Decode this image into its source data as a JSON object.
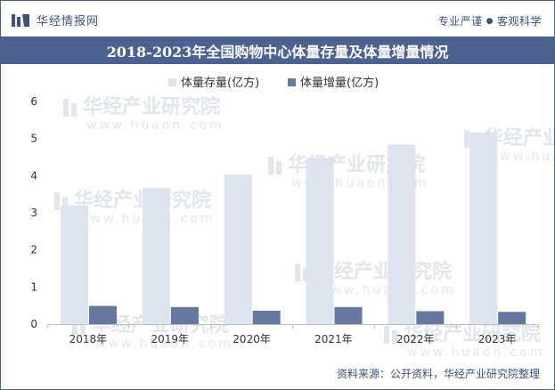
{
  "header": {
    "brand": "华经情报网",
    "brand_icon": "huajing-logo-icon",
    "slogan_left": "专业严谨",
    "slogan_right": "客观科学"
  },
  "watermark": {
    "text": "华经产业研究院",
    "url": "www.huaon.com"
  },
  "chart_data": {
    "type": "bar",
    "title": "2018-2023年全国购物中心体量存量及体量增量情况",
    "categories": [
      "2018年",
      "2019年",
      "2020年",
      "2021年",
      "2022年",
      "2023年"
    ],
    "series": [
      {
        "name": "体量存量(亿方)",
        "values": [
          3.2,
          3.67,
          4.03,
          4.48,
          4.84,
          5.16
        ],
        "color": "#dde3ef"
      },
      {
        "name": "体量增量(亿方)",
        "values": [
          0.49,
          0.46,
          0.36,
          0.46,
          0.35,
          0.33
        ],
        "color": "#66789f"
      }
    ],
    "yticks": [
      "0",
      "1",
      "2",
      "3",
      "4",
      "5",
      "6"
    ],
    "ylim": [
      0,
      6
    ],
    "xlabel": "",
    "ylabel": "",
    "legend_position": "top-center",
    "grid": false
  },
  "footer": {
    "source": "资料来源：公开资料，华经产业研究院整理"
  }
}
